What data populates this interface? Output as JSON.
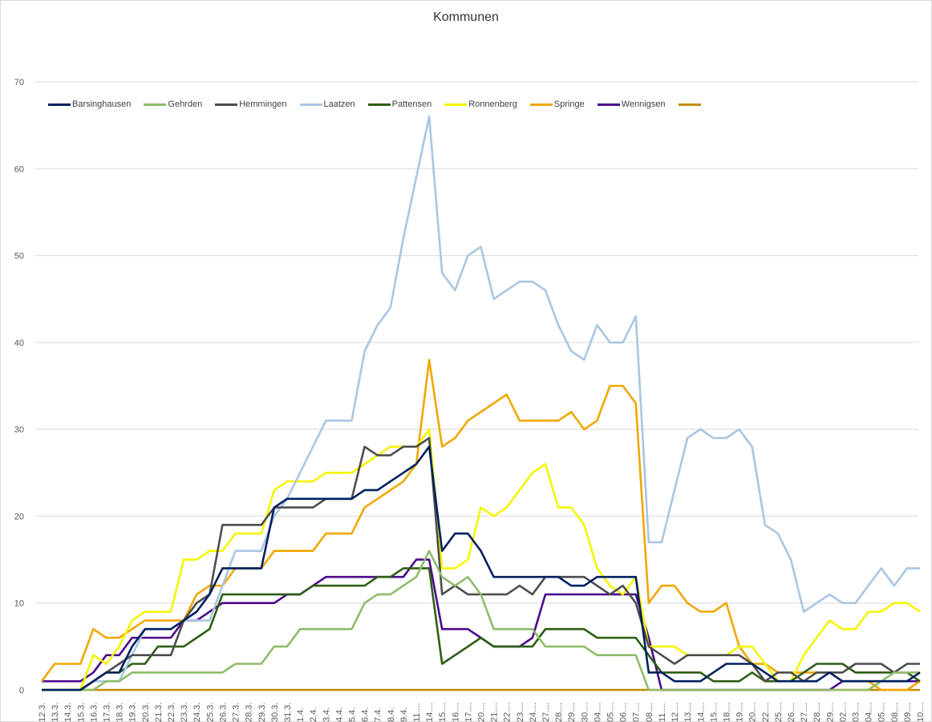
{
  "chart_data": {
    "type": "line",
    "title": "Kommunen",
    "xlabel": "",
    "ylabel": "",
    "ylim": [
      0,
      70
    ],
    "yticks": [
      0,
      10,
      20,
      30,
      40,
      50,
      60,
      70
    ],
    "grid": true,
    "legend_position": "top-left",
    "categories": [
      "12.3.",
      "13.3.",
      "14.3.",
      "15.3.",
      "16.3.",
      "17.3.",
      "18.3.",
      "19.3.",
      "20.3.",
      "21.3.",
      "22.3.",
      "23.3.",
      "24.3.",
      "25.3.",
      "26.3.",
      "27.3.",
      "28.3.",
      "29.3.",
      "30.3.",
      "31.3.",
      "1.4.",
      "2.4.",
      "3.4.",
      "4.4.",
      "5.4.",
      "6.4.",
      "7.4.",
      "8.4.",
      "9.4.",
      "11....",
      "14....",
      "15....",
      "16....",
      "17....",
      "20....",
      "21....",
      "22....",
      "23....",
      "24....",
      "27....",
      "28....",
      "29....",
      "30....",
      "04....",
      "05....",
      "06....",
      "07....",
      "08....",
      "11....",
      "12....",
      "13....",
      "14....",
      "15....",
      "18....",
      "19....",
      "20....",
      "22....",
      "25....",
      "26....",
      "27....",
      "28....",
      "29....",
      "02....",
      "03....",
      "04....",
      "05....",
      "08....",
      "09....",
      "10...."
    ],
    "series": [
      {
        "name": "Barsinghausen",
        "color": "#002060",
        "values": [
          0,
          0,
          0,
          0,
          1,
          2,
          2,
          5,
          7,
          7,
          7,
          8,
          9,
          11,
          14,
          14,
          14,
          14,
          21,
          22,
          22,
          22,
          22,
          22,
          22,
          23,
          23,
          24,
          25,
          26,
          28,
          16,
          18,
          18,
          16,
          13,
          13,
          13,
          13,
          13,
          13,
          12,
          12,
          13,
          13,
          13,
          13,
          2,
          2,
          1,
          1,
          1,
          2,
          3,
          3,
          3,
          2,
          1,
          1,
          1,
          1,
          2,
          1,
          1,
          1,
          1,
          1,
          1,
          2
        ]
      },
      {
        "name": "Gehrden",
        "color": "#8fbc6a",
        "values": [
          0,
          0,
          0,
          0,
          0,
          1,
          1,
          2,
          2,
          2,
          2,
          2,
          2,
          2,
          2,
          3,
          3,
          3,
          5,
          5,
          7,
          7,
          7,
          7,
          7,
          10,
          11,
          11,
          12,
          13,
          16,
          13,
          12,
          13,
          11,
          7,
          7,
          7,
          7,
          5,
          5,
          5,
          5,
          4,
          4,
          4,
          4,
          0,
          0,
          0,
          0,
          0,
          0,
          0,
          0,
          0,
          0,
          0,
          0,
          0,
          0,
          0,
          0,
          0,
          0,
          1,
          2,
          2,
          2
        ]
      },
      {
        "name": "Hemmingen",
        "color": "#4d4d4d",
        "values": [
          0,
          0,
          0,
          0,
          1,
          2,
          3,
          4,
          4,
          4,
          4,
          8,
          10,
          11,
          19,
          19,
          19,
          19,
          21,
          21,
          21,
          21,
          22,
          22,
          22,
          28,
          27,
          27,
          28,
          28,
          29,
          11,
          12,
          11,
          11,
          11,
          11,
          12,
          11,
          13,
          13,
          13,
          13,
          12,
          11,
          12,
          10,
          5,
          4,
          3,
          4,
          4,
          4,
          4,
          4,
          3,
          1,
          2,
          2,
          1,
          2,
          2,
          2,
          3,
          3,
          3,
          2,
          3,
          3
        ]
      },
      {
        "name": "Laatzen",
        "color": "#a9c6e3",
        "values": [
          0,
          0,
          0,
          0,
          1,
          1,
          1,
          4,
          7,
          7,
          7,
          8,
          8,
          8,
          12,
          16,
          16,
          16,
          20,
          22,
          25,
          28,
          31,
          31,
          31,
          39,
          42,
          44,
          52,
          59,
          66,
          48,
          46,
          50,
          51,
          45,
          46,
          47,
          47,
          46,
          42,
          39,
          38,
          42,
          40,
          40,
          43,
          17,
          17,
          23,
          29,
          30,
          29,
          29,
          30,
          28,
          19,
          18,
          15,
          9,
          10,
          11,
          10,
          10,
          12,
          14,
          12,
          14,
          14
        ]
      },
      {
        "name": "Pattensen",
        "color": "#2e5e14",
        "values": [
          0,
          0,
          0,
          0,
          1,
          2,
          2,
          3,
          3,
          5,
          5,
          5,
          6,
          7,
          11,
          11,
          11,
          11,
          11,
          11,
          11,
          12,
          12,
          12,
          12,
          12,
          13,
          13,
          14,
          14,
          14,
          3,
          4,
          5,
          6,
          5,
          5,
          5,
          5,
          7,
          7,
          7,
          7,
          6,
          6,
          6,
          6,
          4,
          2,
          2,
          2,
          2,
          1,
          1,
          1,
          2,
          1,
          1,
          1,
          2,
          3,
          3,
          3,
          2,
          2,
          2,
          2,
          2,
          1
        ]
      },
      {
        "name": "Ronnenberg",
        "color": "#f5f500",
        "values": [
          0,
          0,
          0,
          0,
          4,
          3,
          5,
          8,
          9,
          9,
          9,
          15,
          15,
          16,
          16,
          18,
          18,
          18,
          23,
          24,
          24,
          24,
          25,
          25,
          25,
          26,
          27,
          28,
          28,
          28,
          30,
          14,
          14,
          15,
          21,
          20,
          21,
          23,
          25,
          26,
          21,
          21,
          19,
          14,
          12,
          11,
          13,
          5,
          5,
          5,
          4,
          4,
          4,
          4,
          5,
          5,
          3,
          1,
          1,
          4,
          6,
          8,
          7,
          7,
          9,
          9,
          10,
          10,
          9
        ]
      },
      {
        "name": "Springe",
        "color": "#f0a800",
        "values": [
          1,
          3,
          3,
          3,
          7,
          6,
          6,
          7,
          8,
          8,
          8,
          8,
          11,
          12,
          12,
          14,
          14,
          14,
          16,
          16,
          16,
          16,
          18,
          18,
          18,
          21,
          22,
          23,
          24,
          26,
          38,
          28,
          29,
          31,
          32,
          33,
          34,
          31,
          31,
          31,
          31,
          32,
          30,
          31,
          35,
          35,
          33,
          10,
          12,
          12,
          10,
          9,
          9,
          10,
          5,
          3,
          3,
          2,
          2,
          2,
          2,
          2,
          1,
          1,
          1,
          0,
          0,
          0,
          1
        ]
      },
      {
        "name": "Wennigsen",
        "color": "#4b0a8c",
        "values": [
          1,
          1,
          1,
          1,
          2,
          4,
          4,
          6,
          6,
          6,
          6,
          8,
          8,
          9,
          10,
          10,
          10,
          10,
          10,
          11,
          11,
          12,
          13,
          13,
          13,
          13,
          13,
          13,
          13,
          15,
          15,
          7,
          7,
          7,
          6,
          5,
          5,
          5,
          6,
          11,
          11,
          11,
          11,
          11,
          11,
          11,
          11,
          6,
          0,
          0,
          0,
          0,
          0,
          0,
          0,
          0,
          0,
          0,
          0,
          0,
          0,
          0,
          1,
          1,
          1,
          1,
          1,
          1,
          1
        ]
      },
      {
        "name": "",
        "color": "#bf8c00",
        "values": [
          0,
          0,
          0,
          0,
          0,
          0,
          0,
          0,
          0,
          0,
          0,
          0,
          0,
          0,
          0,
          0,
          0,
          0,
          0,
          0,
          0,
          0,
          0,
          0,
          0,
          0,
          0,
          0,
          0,
          0,
          0,
          0,
          0,
          0,
          0,
          0,
          0,
          0,
          0,
          0,
          0,
          0,
          0,
          0,
          0,
          0,
          0,
          0,
          0,
          0,
          0,
          0,
          0,
          0,
          0,
          0,
          0,
          0,
          0,
          0,
          0,
          0,
          0,
          0,
          0,
          0,
          0,
          0,
          0
        ]
      }
    ]
  }
}
